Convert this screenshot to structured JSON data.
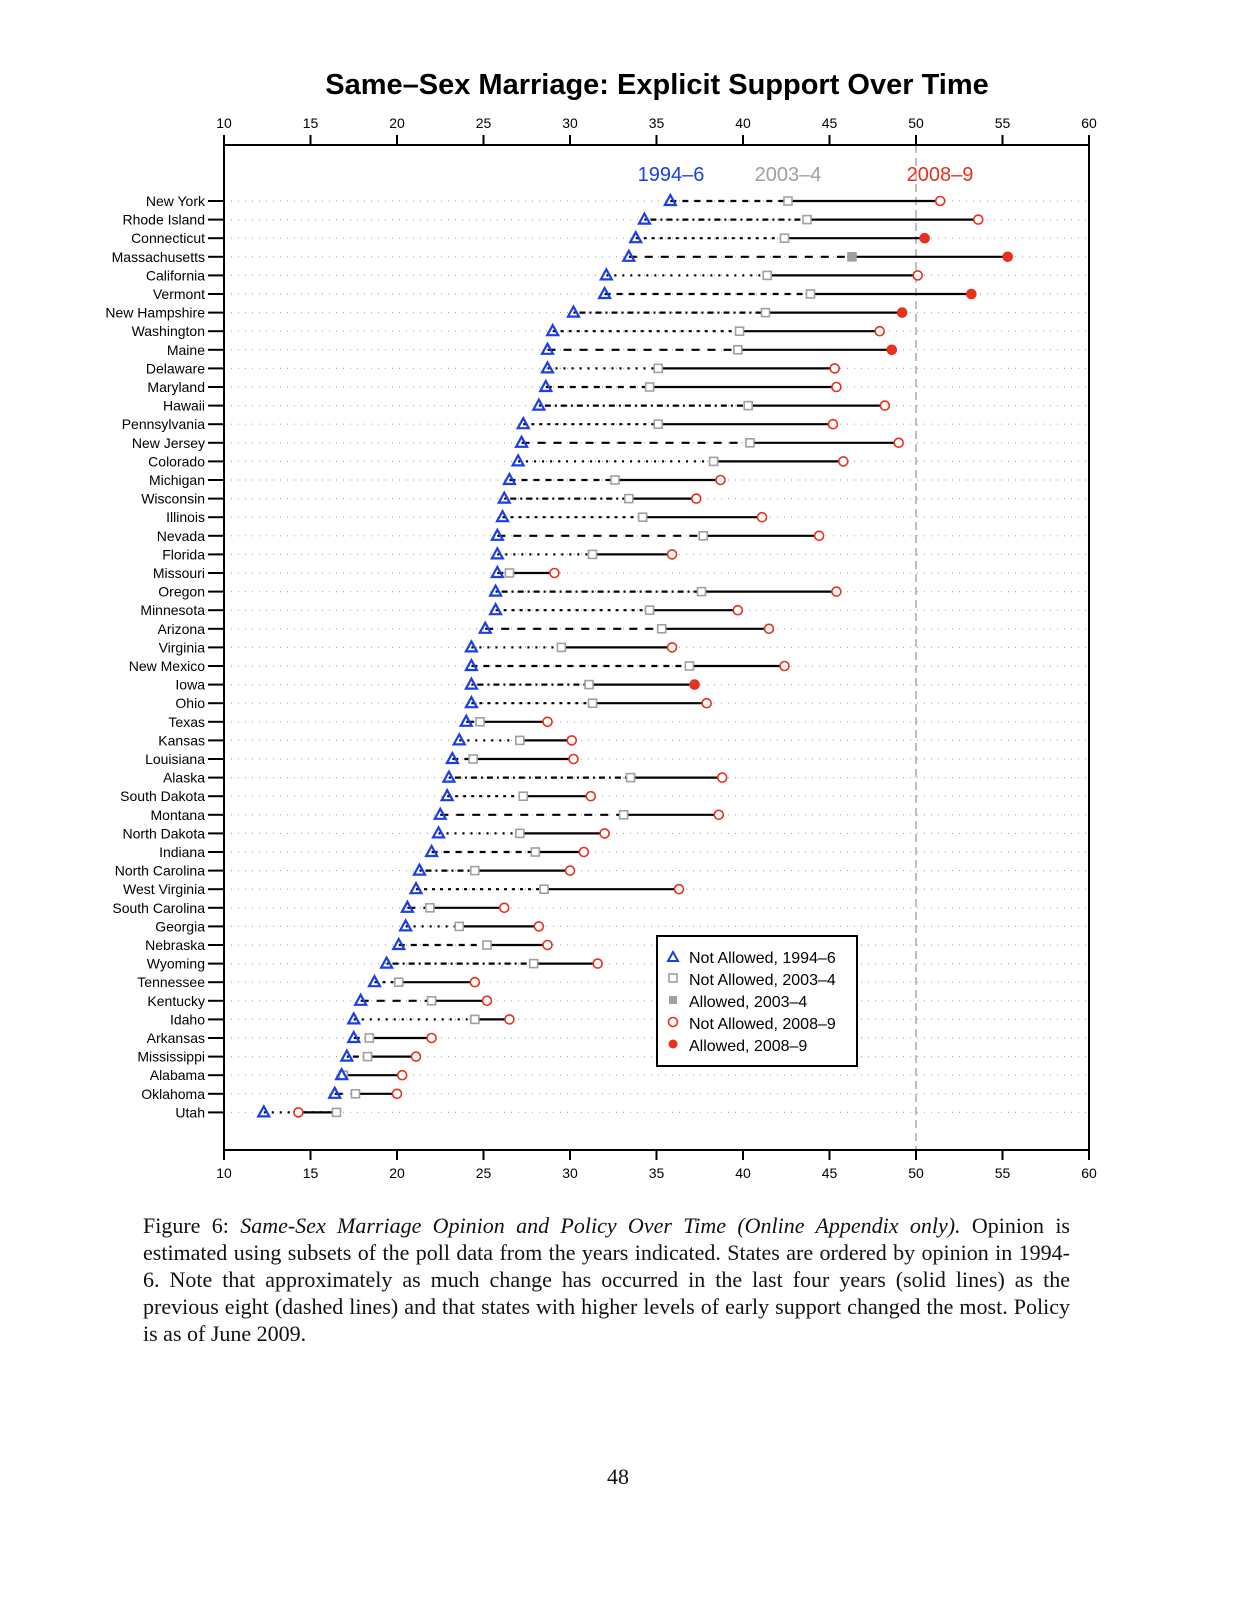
{
  "chart_data": {
    "type": "scatter",
    "title": "Same–Sex Marriage: Explicit Support Over Time",
    "xlim": [
      10,
      60
    ],
    "xticks": [
      10,
      15,
      20,
      25,
      30,
      35,
      40,
      45,
      50,
      55,
      60
    ],
    "reference_line_x": 50,
    "grid": "dotted horizontal per state",
    "period_labels": {
      "p1": "1994–6",
      "p2": "2003–4",
      "p3": "2008–9"
    },
    "colors": {
      "p1": "#1a3ee8",
      "p2": "#a0a0a0",
      "p3": "#e8301c"
    },
    "legend": {
      "placement": "bottom-right",
      "entries": [
        "Not Allowed, 1994–6",
        "Not Allowed, 2003–4",
        "Allowed, 2003–4",
        "Not Allowed, 2008–9",
        "Allowed, 2008–9"
      ]
    },
    "states": [
      {
        "name": "New York",
        "v1994": 35.8,
        "v2003": 42.6,
        "v2008": 51.4,
        "allowed2003": false,
        "allowed2008": false
      },
      {
        "name": "Rhode Island",
        "v1994": 34.3,
        "v2003": 43.7,
        "v2008": 53.6,
        "allowed2003": false,
        "allowed2008": false
      },
      {
        "name": "Connecticut",
        "v1994": 33.8,
        "v2003": 42.4,
        "v2008": 50.5,
        "allowed2003": false,
        "allowed2008": true
      },
      {
        "name": "Massachusetts",
        "v1994": 33.4,
        "v2003": 46.3,
        "v2008": 55.3,
        "allowed2003": true,
        "allowed2008": true
      },
      {
        "name": "California",
        "v1994": 32.1,
        "v2003": 41.4,
        "v2008": 50.1,
        "allowed2003": false,
        "allowed2008": false
      },
      {
        "name": "Vermont",
        "v1994": 32.0,
        "v2003": 43.9,
        "v2008": 53.2,
        "allowed2003": false,
        "allowed2008": true
      },
      {
        "name": "New Hampshire",
        "v1994": 30.2,
        "v2003": 41.3,
        "v2008": 49.2,
        "allowed2003": false,
        "allowed2008": true
      },
      {
        "name": "Washington",
        "v1994": 29.0,
        "v2003": 39.8,
        "v2008": 47.9,
        "allowed2003": false,
        "allowed2008": false
      },
      {
        "name": "Maine",
        "v1994": 28.7,
        "v2003": 39.7,
        "v2008": 48.6,
        "allowed2003": false,
        "allowed2008": true
      },
      {
        "name": "Delaware",
        "v1994": 28.7,
        "v2003": 35.1,
        "v2008": 45.3,
        "allowed2003": false,
        "allowed2008": false
      },
      {
        "name": "Maryland",
        "v1994": 28.6,
        "v2003": 34.6,
        "v2008": 45.4,
        "allowed2003": false,
        "allowed2008": false
      },
      {
        "name": "Hawaii",
        "v1994": 28.2,
        "v2003": 40.3,
        "v2008": 48.2,
        "allowed2003": false,
        "allowed2008": false
      },
      {
        "name": "Pennsylvania",
        "v1994": 27.3,
        "v2003": 35.1,
        "v2008": 45.2,
        "allowed2003": false,
        "allowed2008": false
      },
      {
        "name": "New Jersey",
        "v1994": 27.2,
        "v2003": 40.4,
        "v2008": 49.0,
        "allowed2003": false,
        "allowed2008": false
      },
      {
        "name": "Colorado",
        "v1994": 27.0,
        "v2003": 38.3,
        "v2008": 45.8,
        "allowed2003": false,
        "allowed2008": false
      },
      {
        "name": "Michigan",
        "v1994": 26.5,
        "v2003": 32.6,
        "v2008": 38.7,
        "allowed2003": false,
        "allowed2008": false
      },
      {
        "name": "Wisconsin",
        "v1994": 26.2,
        "v2003": 33.4,
        "v2008": 37.3,
        "allowed2003": false,
        "allowed2008": false
      },
      {
        "name": "Illinois",
        "v1994": 26.1,
        "v2003": 34.2,
        "v2008": 41.1,
        "allowed2003": false,
        "allowed2008": false
      },
      {
        "name": "Nevada",
        "v1994": 25.8,
        "v2003": 37.7,
        "v2008": 44.4,
        "allowed2003": false,
        "allowed2008": false
      },
      {
        "name": "Florida",
        "v1994": 25.8,
        "v2003": 31.3,
        "v2008": 35.9,
        "allowed2003": false,
        "allowed2008": false
      },
      {
        "name": "Missouri",
        "v1994": 25.8,
        "v2003": 26.5,
        "v2008": 29.1,
        "allowed2003": false,
        "allowed2008": false
      },
      {
        "name": "Oregon",
        "v1994": 25.7,
        "v2003": 37.6,
        "v2008": 45.4,
        "allowed2003": false,
        "allowed2008": false
      },
      {
        "name": "Minnesota",
        "v1994": 25.7,
        "v2003": 34.6,
        "v2008": 39.7,
        "allowed2003": false,
        "allowed2008": false
      },
      {
        "name": "Arizona",
        "v1994": 25.1,
        "v2003": 35.3,
        "v2008": 41.5,
        "allowed2003": false,
        "allowed2008": false
      },
      {
        "name": "Virginia",
        "v1994": 24.3,
        "v2003": 29.5,
        "v2008": 35.9,
        "allowed2003": false,
        "allowed2008": false
      },
      {
        "name": "New Mexico",
        "v1994": 24.3,
        "v2003": 36.9,
        "v2008": 42.4,
        "allowed2003": false,
        "allowed2008": false
      },
      {
        "name": "Iowa",
        "v1994": 24.3,
        "v2003": 31.1,
        "v2008": 37.2,
        "allowed2003": false,
        "allowed2008": true
      },
      {
        "name": "Ohio",
        "v1994": 24.3,
        "v2003": 31.3,
        "v2008": 37.9,
        "allowed2003": false,
        "allowed2008": false
      },
      {
        "name": "Texas",
        "v1994": 24.0,
        "v2003": 24.8,
        "v2008": 28.7,
        "allowed2003": false,
        "allowed2008": false
      },
      {
        "name": "Kansas",
        "v1994": 23.6,
        "v2003": 27.1,
        "v2008": 30.1,
        "allowed2003": false,
        "allowed2008": false
      },
      {
        "name": "Louisiana",
        "v1994": 23.2,
        "v2003": 24.4,
        "v2008": 30.2,
        "allowed2003": false,
        "allowed2008": false
      },
      {
        "name": "Alaska",
        "v1994": 23.0,
        "v2003": 33.5,
        "v2008": 38.8,
        "allowed2003": false,
        "allowed2008": false
      },
      {
        "name": "South Dakota",
        "v1994": 22.9,
        "v2003": 27.3,
        "v2008": 31.2,
        "allowed2003": false,
        "allowed2008": false
      },
      {
        "name": "Montana",
        "v1994": 22.5,
        "v2003": 33.1,
        "v2008": 38.6,
        "allowed2003": false,
        "allowed2008": false
      },
      {
        "name": "North Dakota",
        "v1994": 22.4,
        "v2003": 27.1,
        "v2008": 32.0,
        "allowed2003": false,
        "allowed2008": false
      },
      {
        "name": "Indiana",
        "v1994": 22.0,
        "v2003": 28.0,
        "v2008": 30.8,
        "allowed2003": false,
        "allowed2008": false
      },
      {
        "name": "North Carolina",
        "v1994": 21.3,
        "v2003": 24.5,
        "v2008": 30.0,
        "allowed2003": false,
        "allowed2008": false
      },
      {
        "name": "West Virginia",
        "v1994": 21.1,
        "v2003": 28.5,
        "v2008": 36.3,
        "allowed2003": false,
        "allowed2008": false
      },
      {
        "name": "South Carolina",
        "v1994": 20.6,
        "v2003": 21.9,
        "v2008": 26.2,
        "allowed2003": false,
        "allowed2008": false
      },
      {
        "name": "Georgia",
        "v1994": 20.5,
        "v2003": 23.6,
        "v2008": 28.2,
        "allowed2003": false,
        "allowed2008": false
      },
      {
        "name": "Nebraska",
        "v1994": 20.1,
        "v2003": 25.2,
        "v2008": 28.7,
        "allowed2003": false,
        "allowed2008": false
      },
      {
        "name": "Wyoming",
        "v1994": 19.4,
        "v2003": 27.9,
        "v2008": 31.6,
        "allowed2003": false,
        "allowed2008": false
      },
      {
        "name": "Tennessee",
        "v1994": 18.7,
        "v2003": 20.1,
        "v2008": 24.5,
        "allowed2003": false,
        "allowed2008": false
      },
      {
        "name": "Kentucky",
        "v1994": 17.9,
        "v2003": 22.0,
        "v2008": 25.2,
        "allowed2003": false,
        "allowed2008": false
      },
      {
        "name": "Idaho",
        "v1994": 17.5,
        "v2003": 24.5,
        "v2008": 26.5,
        "allowed2003": false,
        "allowed2008": false
      },
      {
        "name": "Arkansas",
        "v1994": 17.5,
        "v2003": 18.4,
        "v2008": 22.0,
        "allowed2003": false,
        "allowed2008": false
      },
      {
        "name": "Mississippi",
        "v1994": 17.1,
        "v2003": 18.3,
        "v2008": 21.1,
        "allowed2003": false,
        "allowed2008": false
      },
      {
        "name": "Alabama",
        "v1994": 16.8,
        "v2003": 16.9,
        "v2008": 20.3,
        "allowed2003": false,
        "allowed2008": false
      },
      {
        "name": "Oklahoma",
        "v1994": 16.4,
        "v2003": 17.6,
        "v2008": 20.0,
        "allowed2003": false,
        "allowed2008": false
      },
      {
        "name": "Utah",
        "v1994": 12.3,
        "v2003": 16.5,
        "v2008": 14.3,
        "allowed2003": false,
        "allowed2008": false
      }
    ]
  },
  "caption": {
    "label": "Figure 6:",
    "title": "Same-Sex Marriage Opinion and Policy Over Time (Online Appendix only).",
    "body": "Opinion is estimated using subsets of the poll data from the years indicated. States are ordered by opinion in 1994-6. Note that approximately as much change has occurred in the last four years (solid lines) as the previous eight (dashed lines) and that states with higher levels of early support changed the most. Policy is as of June 2009."
  },
  "page_number": "48"
}
